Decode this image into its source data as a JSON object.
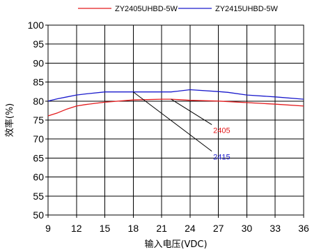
{
  "chart_data": {
    "type": "line",
    "xlabel": "输入电压(VDC)",
    "ylabel": "效率(%)",
    "xlim": [
      9,
      36
    ],
    "ylim": [
      50,
      100
    ],
    "xticks": [
      9,
      12,
      15,
      18,
      21,
      24,
      27,
      30,
      33,
      36
    ],
    "yticks": [
      50,
      55,
      60,
      65,
      70,
      75,
      80,
      85,
      90,
      95,
      100
    ],
    "grid": true,
    "legend_position": "top",
    "series": [
      {
        "name": "ZY2405UHBD-5W",
        "color": "#e31a1c",
        "x": [
          9,
          10,
          11,
          12,
          13,
          15,
          18,
          21,
          22,
          24,
          27,
          30,
          33,
          36
        ],
        "y": [
          76.1,
          76.9,
          77.9,
          78.7,
          79.1,
          79.7,
          80.3,
          80.5,
          80.5,
          80.2,
          80.0,
          79.6,
          79.2,
          78.7
        ]
      },
      {
        "name": "ZY2415UHBD-5W",
        "color": "#1a1acc",
        "x": [
          9,
          10,
          11,
          12,
          13,
          15,
          18,
          21,
          22,
          24,
          27,
          28,
          30,
          33,
          36
        ],
        "y": [
          80.0,
          80.6,
          81.1,
          81.6,
          81.9,
          82.4,
          82.4,
          82.4,
          82.4,
          83.0,
          82.5,
          82.3,
          81.6,
          81.1,
          80.5
        ]
      }
    ],
    "annotations": [
      {
        "text": "2405",
        "series": 0,
        "color": "#e31a1c",
        "from": [
          22.0,
          80.5
        ],
        "to": [
          26.3,
          73.8
        ]
      },
      {
        "text": "2415",
        "series": 1,
        "color": "#1a1acc",
        "from": [
          18.0,
          82.4
        ],
        "to": [
          26.3,
          66.8
        ]
      }
    ],
    "label_line_color": "#000000",
    "grid_color": "#000000",
    "axis_color": "#000000"
  }
}
